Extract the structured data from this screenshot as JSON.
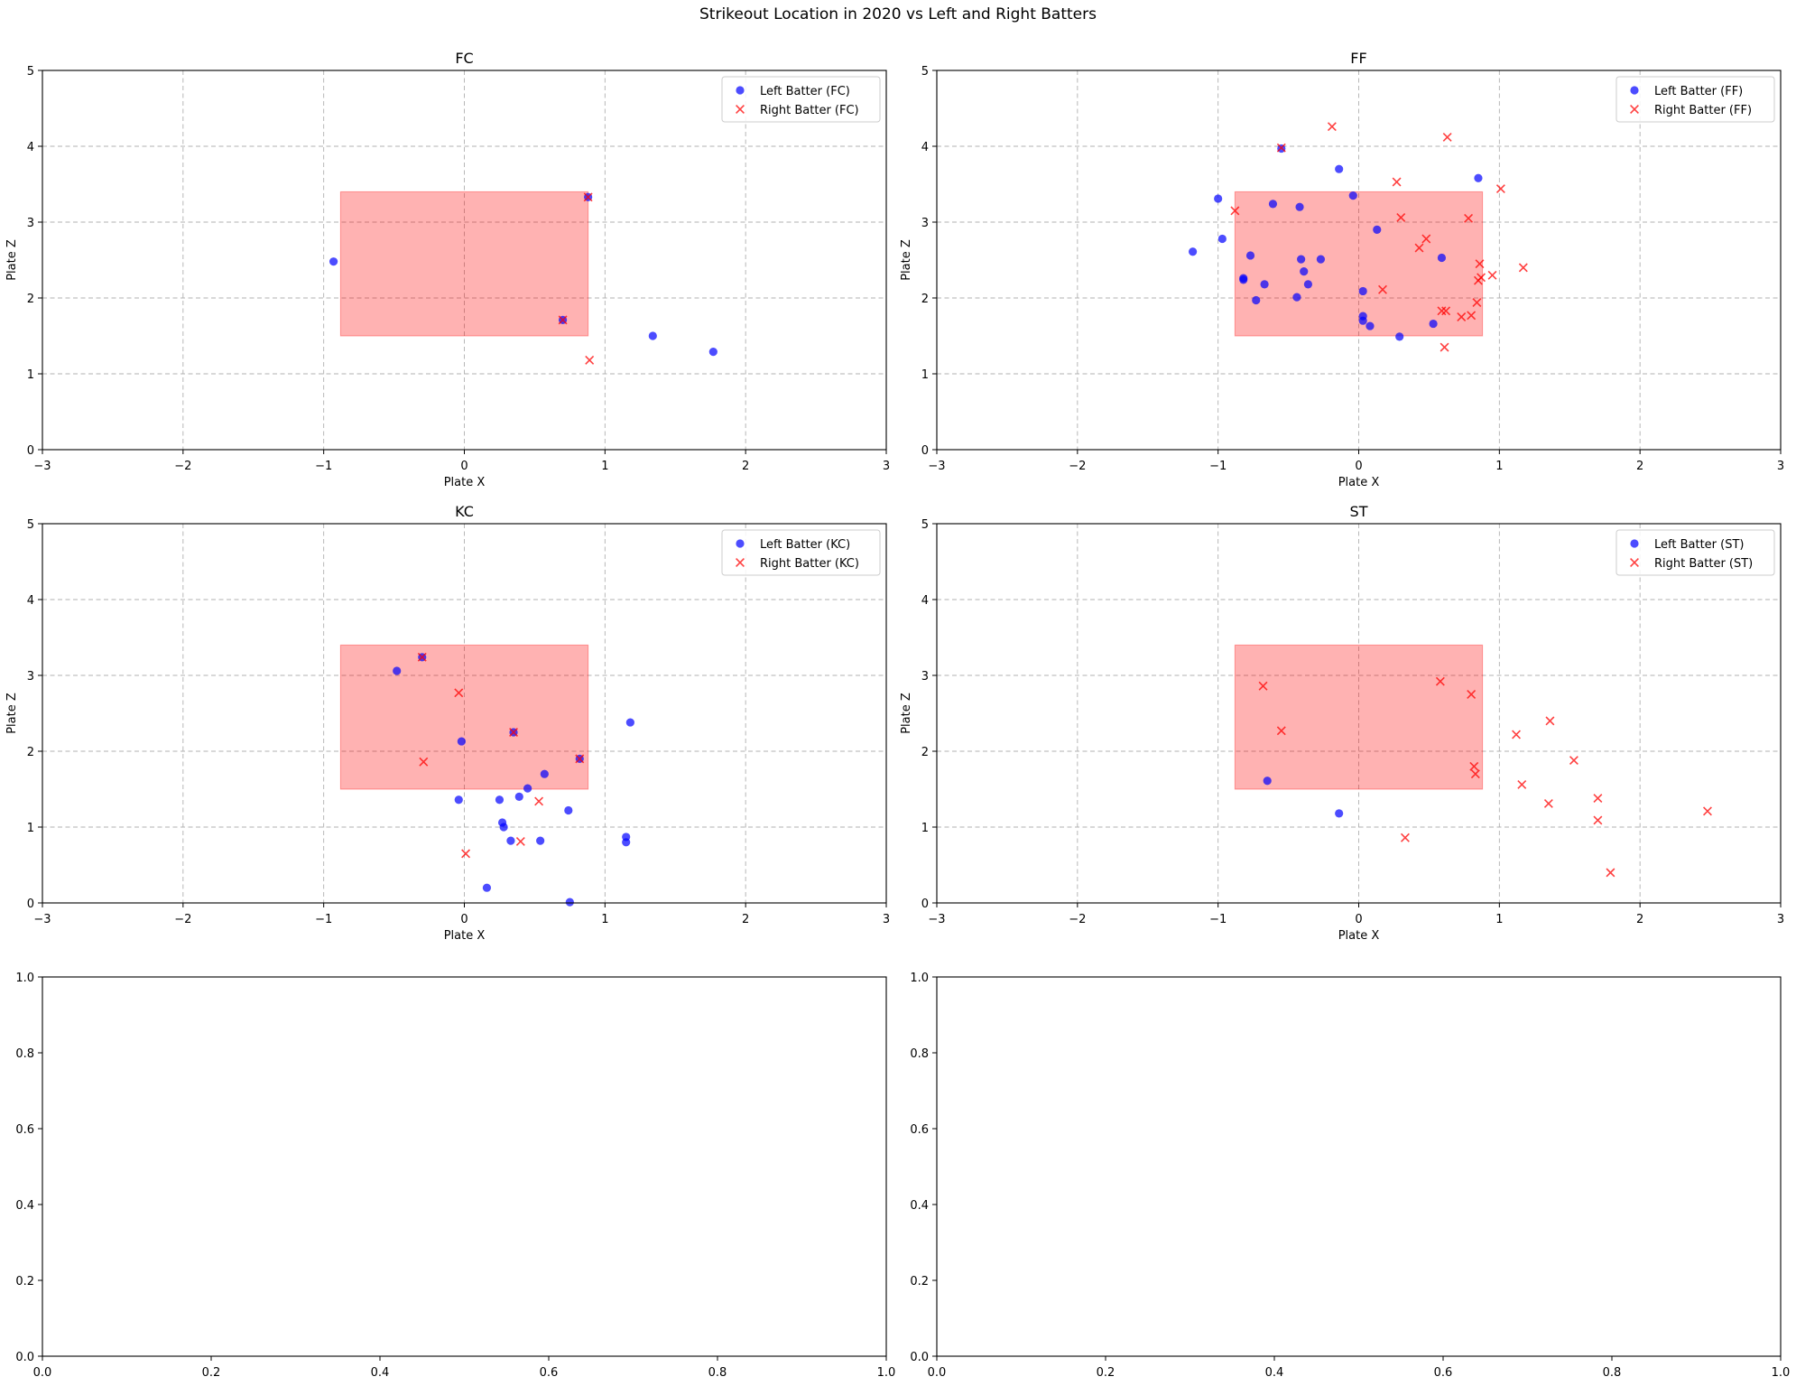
{
  "figure": {
    "title": "Strikeout Location in 2020 vs Left and Right Batters",
    "left_color": "#0000ff",
    "right_color": "#ff0000",
    "zone_color": "#ff0000"
  },
  "chart_data": [
    {
      "type": "scatter",
      "title": "FC",
      "xlabel": "Plate X",
      "ylabel": "Plate Z",
      "xlim": [
        -3,
        3
      ],
      "ylim": [
        0,
        5
      ],
      "xticks": [
        -3,
        -2,
        -1,
        0,
        1,
        2,
        3
      ],
      "yticks": [
        0,
        1,
        2,
        3,
        4,
        5
      ],
      "grid": true,
      "legend_position": "top-right",
      "strike_zone": {
        "x": [
          -0.88,
          0.88
        ],
        "z": [
          1.5,
          3.4
        ]
      },
      "series": [
        {
          "name": "Left Batter (FC)",
          "marker": "circle",
          "color": "#0000ff",
          "points": [
            [
              -0.93,
              2.48
            ],
            [
              0.88,
              3.33
            ],
            [
              0.7,
              1.71
            ],
            [
              1.34,
              1.5
            ],
            [
              1.77,
              1.29
            ]
          ]
        },
        {
          "name": "Right Batter (FC)",
          "marker": "x",
          "color": "#ff0000",
          "points": [
            [
              0.89,
              1.18
            ],
            [
              0.88,
              3.33
            ],
            [
              0.7,
              1.71
            ]
          ]
        }
      ]
    },
    {
      "type": "scatter",
      "title": "FF",
      "xlabel": "Plate X",
      "ylabel": "Plate Z",
      "xlim": [
        -3,
        3
      ],
      "ylim": [
        0,
        5
      ],
      "xticks": [
        -3,
        -2,
        -1,
        0,
        1,
        2,
        3
      ],
      "yticks": [
        0,
        1,
        2,
        3,
        4,
        5
      ],
      "grid": true,
      "legend_position": "top-right",
      "strike_zone": {
        "x": [
          -0.88,
          0.88
        ],
        "z": [
          1.5,
          3.4
        ]
      },
      "series": [
        {
          "name": "Left Batter (FF)",
          "marker": "circle",
          "color": "#0000ff",
          "points": [
            [
              -1.18,
              2.61
            ],
            [
              -1.0,
              3.31
            ],
            [
              -0.97,
              2.78
            ],
            [
              -0.82,
              2.26
            ],
            [
              -0.82,
              2.24
            ],
            [
              -0.77,
              2.56
            ],
            [
              -0.73,
              1.97
            ],
            [
              -0.67,
              2.18
            ],
            [
              -0.61,
              3.24
            ],
            [
              -0.55,
              3.97
            ],
            [
              -0.44,
              2.01
            ],
            [
              -0.42,
              3.2
            ],
            [
              -0.41,
              2.51
            ],
            [
              -0.39,
              2.35
            ],
            [
              -0.36,
              2.18
            ],
            [
              -0.27,
              2.51
            ],
            [
              -0.14,
              3.7
            ],
            [
              -0.04,
              3.35
            ],
            [
              0.03,
              2.09
            ],
            [
              0.03,
              1.76
            ],
            [
              0.03,
              1.7
            ],
            [
              0.08,
              1.63
            ],
            [
              0.13,
              2.9
            ],
            [
              0.29,
              1.49
            ],
            [
              0.53,
              1.66
            ],
            [
              0.59,
              2.53
            ],
            [
              0.85,
              3.58
            ]
          ]
        },
        {
          "name": "Right Batter (FF)",
          "marker": "x",
          "color": "#ff0000",
          "points": [
            [
              -0.88,
              3.15
            ],
            [
              -0.55,
              3.98
            ],
            [
              -0.19,
              4.26
            ],
            [
              0.17,
              2.11
            ],
            [
              0.27,
              3.53
            ],
            [
              0.3,
              3.06
            ],
            [
              0.43,
              2.66
            ],
            [
              0.48,
              2.78
            ],
            [
              0.59,
              1.83
            ],
            [
              0.62,
              1.83
            ],
            [
              0.61,
              1.35
            ],
            [
              0.63,
              4.12
            ],
            [
              0.73,
              1.75
            ],
            [
              0.78,
              3.05
            ],
            [
              0.8,
              1.77
            ],
            [
              0.84,
              1.94
            ],
            [
              0.85,
              2.23
            ],
            [
              0.86,
              2.45
            ],
            [
              0.87,
              2.27
            ],
            [
              0.95,
              2.3
            ],
            [
              1.01,
              3.44
            ],
            [
              1.17,
              2.4
            ]
          ]
        }
      ]
    },
    {
      "type": "scatter",
      "title": "KC",
      "xlabel": "Plate X",
      "ylabel": "Plate Z",
      "xlim": [
        -3,
        3
      ],
      "ylim": [
        0,
        5
      ],
      "xticks": [
        -3,
        -2,
        -1,
        0,
        1,
        2,
        3
      ],
      "yticks": [
        0,
        1,
        2,
        3,
        4,
        5
      ],
      "grid": true,
      "legend_position": "top-right",
      "strike_zone": {
        "x": [
          -0.88,
          0.88
        ],
        "z": [
          1.5,
          3.4
        ]
      },
      "series": [
        {
          "name": "Left Batter (KC)",
          "marker": "circle",
          "color": "#0000ff",
          "points": [
            [
              -0.48,
              3.06
            ],
            [
              -0.3,
              3.24
            ],
            [
              -0.02,
              2.13
            ],
            [
              -0.04,
              1.36
            ],
            [
              0.16,
              0.2
            ],
            [
              0.25,
              1.36
            ],
            [
              0.27,
              1.06
            ],
            [
              0.28,
              1.0
            ],
            [
              0.33,
              0.82
            ],
            [
              0.35,
              2.25
            ],
            [
              0.39,
              1.4
            ],
            [
              0.45,
              1.51
            ],
            [
              0.54,
              0.82
            ],
            [
              0.57,
              1.7
            ],
            [
              0.74,
              1.22
            ],
            [
              0.75,
              0.01
            ],
            [
              0.82,
              1.9
            ],
            [
              1.15,
              0.87
            ],
            [
              1.15,
              0.8
            ],
            [
              1.18,
              2.38
            ]
          ]
        },
        {
          "name": "Right Batter (KC)",
          "marker": "x",
          "color": "#ff0000",
          "points": [
            [
              -0.29,
              1.86
            ],
            [
              -0.04,
              2.77
            ],
            [
              0.01,
              0.65
            ],
            [
              0.4,
              0.81
            ],
            [
              0.53,
              1.34
            ],
            [
              -0.3,
              3.24
            ],
            [
              0.35,
              2.25
            ],
            [
              0.82,
              1.9
            ]
          ]
        }
      ]
    },
    {
      "type": "scatter",
      "title": "ST",
      "xlabel": "Plate X",
      "ylabel": "Plate Z",
      "xlim": [
        -3,
        3
      ],
      "ylim": [
        0,
        5
      ],
      "xticks": [
        -3,
        -2,
        -1,
        0,
        1,
        2,
        3
      ],
      "yticks": [
        0,
        1,
        2,
        3,
        4,
        5
      ],
      "grid": true,
      "legend_position": "top-right",
      "strike_zone": {
        "x": [
          -0.88,
          0.88
        ],
        "z": [
          1.5,
          3.4
        ]
      },
      "series": [
        {
          "name": "Left Batter (ST)",
          "marker": "circle",
          "color": "#0000ff",
          "points": [
            [
              -0.65,
              1.61
            ],
            [
              -0.14,
              1.18
            ]
          ]
        },
        {
          "name": "Right Batter (ST)",
          "marker": "x",
          "color": "#ff0000",
          "points": [
            [
              -0.68,
              2.86
            ],
            [
              -0.55,
              2.27
            ],
            [
              0.33,
              0.86
            ],
            [
              0.58,
              2.92
            ],
            [
              0.8,
              2.75
            ],
            [
              0.82,
              1.8
            ],
            [
              0.83,
              1.7
            ],
            [
              1.12,
              2.22
            ],
            [
              1.16,
              1.56
            ],
            [
              1.35,
              1.31
            ],
            [
              1.36,
              2.4
            ],
            [
              1.53,
              1.88
            ],
            [
              1.7,
              1.38
            ],
            [
              1.7,
              1.09
            ],
            [
              1.79,
              0.4
            ],
            [
              2.48,
              1.21
            ]
          ]
        }
      ]
    },
    {
      "type": "scatter",
      "title": "",
      "xlim": [
        0,
        1
      ],
      "ylim": [
        0,
        1
      ],
      "xticks": [
        0.0,
        0.2,
        0.4,
        0.6,
        0.8,
        1.0
      ],
      "yticks": [
        0.0,
        0.2,
        0.4,
        0.6,
        0.8,
        1.0
      ],
      "grid": false,
      "series": []
    },
    {
      "type": "scatter",
      "title": "",
      "xlim": [
        0,
        1
      ],
      "ylim": [
        0,
        1
      ],
      "xticks": [
        0.0,
        0.2,
        0.4,
        0.6,
        0.8,
        1.0
      ],
      "yticks": [
        0.0,
        0.2,
        0.4,
        0.6,
        0.8,
        1.0
      ],
      "grid": false,
      "series": []
    }
  ]
}
